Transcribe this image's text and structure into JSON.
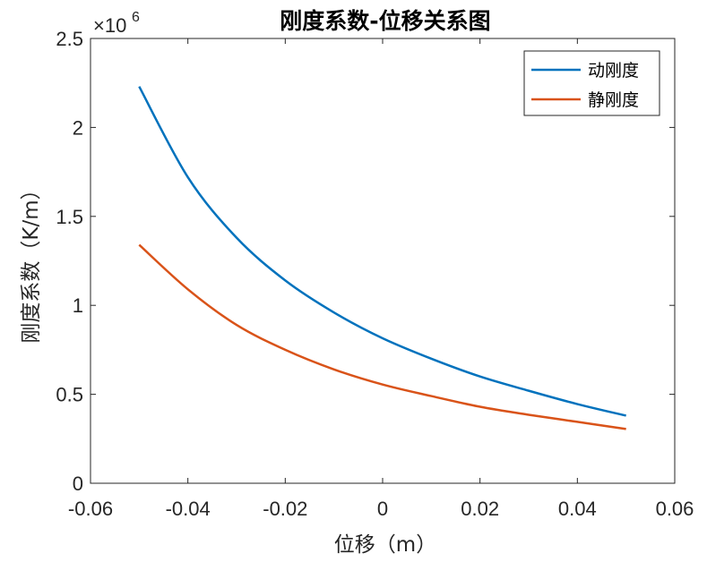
{
  "chart_data": {
    "type": "line",
    "title": "刚度系数-位移关系图",
    "xlabel": "位移（m）",
    "ylabel": "刚度系数（K/m）",
    "y_exponent": {
      "base": "×10",
      "power": "6"
    },
    "xlim": [
      -0.06,
      0.06
    ],
    "ylim": [
      0,
      2500000
    ],
    "x_ticks": [
      -0.06,
      -0.04,
      -0.02,
      0,
      0.02,
      0.04,
      0.06
    ],
    "x_tick_labels": [
      "-0.06",
      "-0.04",
      "-0.02",
      "0",
      "0.02",
      "0.04",
      "0.06"
    ],
    "y_ticks": [
      0,
      500000,
      1000000,
      1500000,
      2000000,
      2500000
    ],
    "y_tick_labels": [
      "0",
      "0.5",
      "1",
      "1.5",
      "2",
      "2.5"
    ],
    "grid": false,
    "legend_position": "top-right",
    "series": [
      {
        "name": "动刚度",
        "color": "#0072BD",
        "x": [
          -0.05,
          -0.04,
          -0.03,
          -0.02,
          -0.01,
          0,
          0.01,
          0.02,
          0.03,
          0.04,
          0.05
        ],
        "y": [
          2230000,
          1720000,
          1380000,
          1140000,
          960000,
          815000,
          700000,
          600000,
          520000,
          445000,
          380000
        ]
      },
      {
        "name": "静刚度",
        "color": "#D95319",
        "x": [
          -0.05,
          -0.04,
          -0.03,
          -0.02,
          -0.01,
          0,
          0.01,
          0.02,
          0.03,
          0.04,
          0.05
        ],
        "y": [
          1340000,
          1090000,
          890000,
          750000,
          640000,
          555000,
          490000,
          430000,
          385000,
          345000,
          305000
        ]
      }
    ]
  }
}
